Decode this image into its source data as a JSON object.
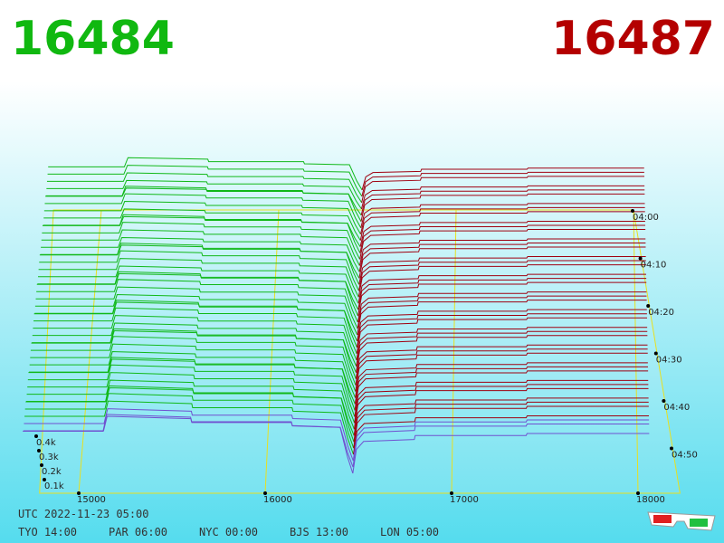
{
  "header": {
    "bid": "16484",
    "ask": "16487"
  },
  "price_axis": [
    "15000",
    "16000",
    "17000",
    "18000"
  ],
  "depth_axis": [
    "0.4k",
    "0.3k",
    "0.2k",
    "0.1k"
  ],
  "time_axis": [
    "04:00",
    "04:10",
    "04:20",
    "04:30",
    "04:40",
    "04:50"
  ],
  "footer": {
    "utc": "UTC 2022-11-23 05:00",
    "zones": [
      "TYO 14:00",
      "PAR 06:00",
      "NYC 00:00",
      "BJS 13:00",
      "LON 05:00"
    ]
  }
}
